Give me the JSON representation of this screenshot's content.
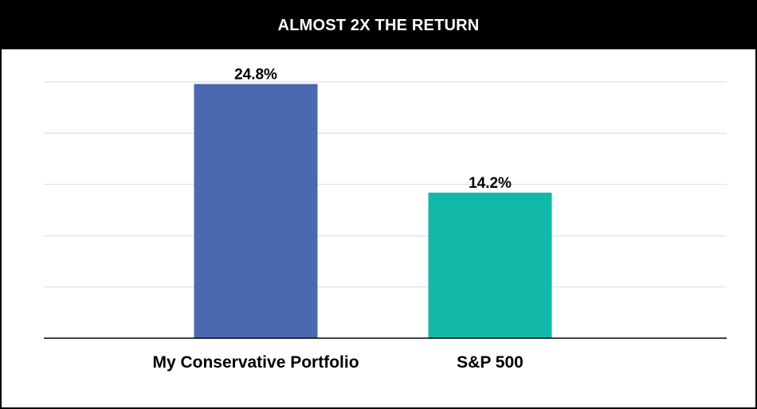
{
  "chart_data": {
    "type": "bar",
    "title": "ALMOST 2X THE RETURN",
    "categories": [
      "My Conservative Portfolio",
      "S&P 500"
    ],
    "values": [
      24.8,
      14.2
    ],
    "value_labels": [
      "24.8%",
      "14.2%"
    ],
    "colors": [
      "#4a69b0",
      "#13b8a9"
    ],
    "ylim": [
      0,
      25
    ],
    "gridlines": [
      5,
      10,
      15,
      20,
      25
    ],
    "grid": true,
    "legend": "none"
  }
}
